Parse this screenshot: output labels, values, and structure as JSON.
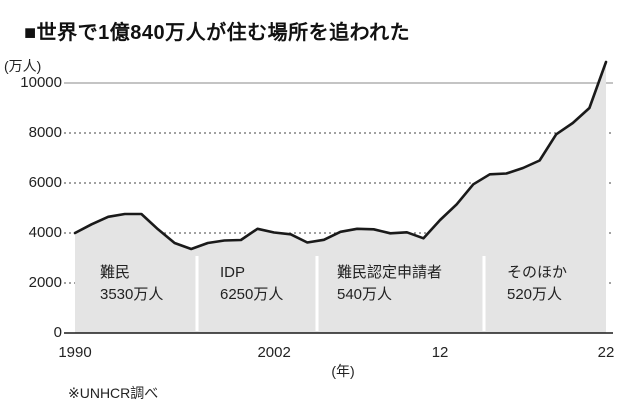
{
  "title": "■世界で1億840万人が住む場所を追われた",
  "y_axis": {
    "unit": "(万人)",
    "ticks": [
      0,
      2000,
      4000,
      6000,
      8000,
      10000
    ]
  },
  "x_axis": {
    "unit": "(年)",
    "ticks": [
      {
        "year": 1990,
        "label": "1990"
      },
      {
        "year": 2002,
        "label": "2002"
      },
      {
        "year": 2012,
        "label": "12"
      },
      {
        "year": 2022,
        "label": "22"
      }
    ]
  },
  "source": "※UNHCR調べ",
  "chart_data": {
    "type": "area",
    "title": "世界で1億840万人が住む場所を追われた",
    "ylabel": "(万人)",
    "xlabel": "(年)",
    "ylim": [
      0,
      11000
    ],
    "x_range": [
      1990,
      2022
    ],
    "grid": "horizontal-dashed",
    "legend": "none",
    "x": [
      1990,
      1991,
      1992,
      1993,
      1994,
      1995,
      1996,
      1997,
      1998,
      1999,
      2000,
      2001,
      2002,
      2003,
      2004,
      2005,
      2006,
      2007,
      2008,
      2009,
      2010,
      2011,
      2012,
      2013,
      2014,
      2015,
      2016,
      2017,
      2018,
      2019,
      2020,
      2021,
      2022
    ],
    "values": [
      4000,
      4350,
      4650,
      4760,
      4760,
      4150,
      3600,
      3360,
      3600,
      3700,
      3720,
      4170,
      4020,
      3950,
      3620,
      3730,
      4050,
      4170,
      4150,
      3990,
      4030,
      3790,
      4520,
      5150,
      5950,
      6350,
      6380,
      6600,
      6900,
      7950,
      8400,
      9000,
      10840
    ],
    "final_total_label": "1億840万人",
    "segments": [
      {
        "label": "難民",
        "value_label": "3530万人"
      },
      {
        "label": "IDP",
        "value_label": "6250万人"
      },
      {
        "label": "難民認定申請者",
        "value_label": "540万人"
      },
      {
        "label": "そのほか",
        "value_label": "520万人"
      }
    ],
    "colors": {
      "area_fill": "#e4e4e4",
      "line": "#1a1a1a",
      "grid_dashed": "#444444",
      "grid_top_solid": "#8a8a8a",
      "divider": "#ffffff"
    }
  }
}
